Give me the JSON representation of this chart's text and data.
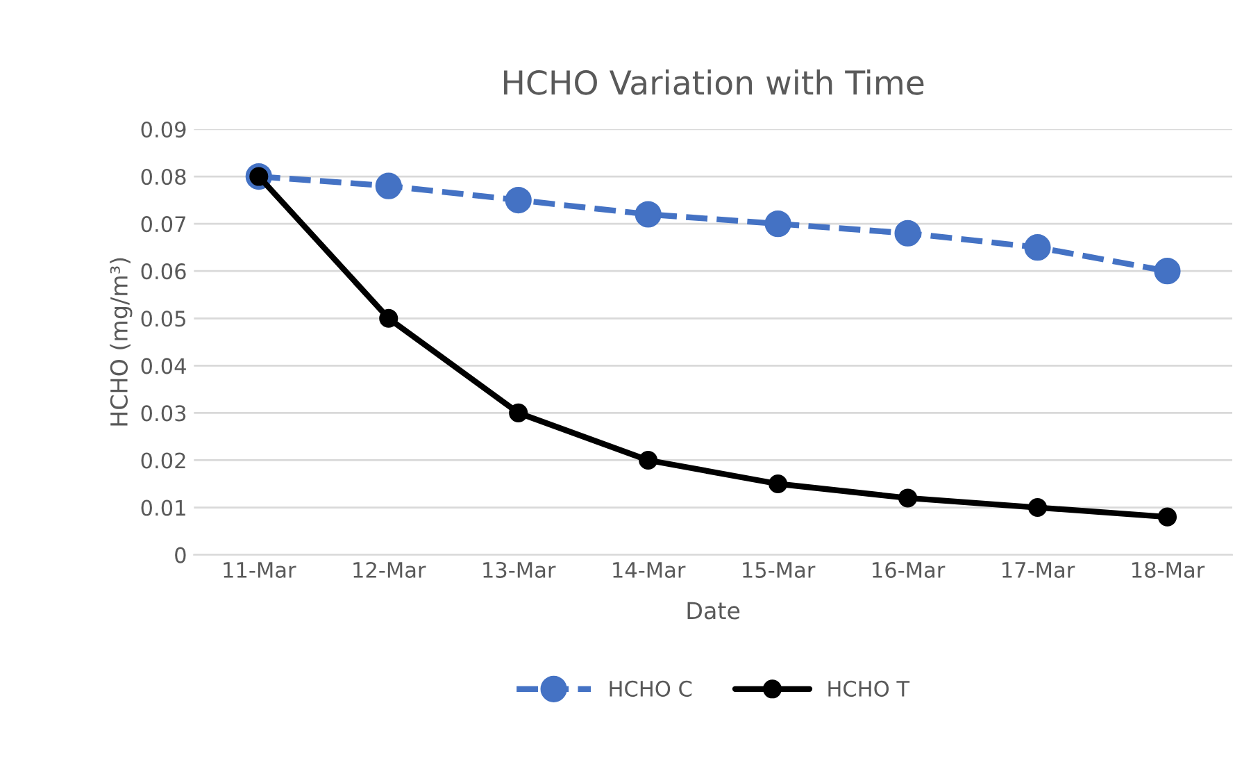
{
  "chart_data": {
    "type": "line",
    "title": "HCHO Variation with Time",
    "xlabel": "Date",
    "ylabel": "HCHO (mg/m³)",
    "categories": [
      "11-Mar",
      "12-Mar",
      "13-Mar",
      "14-Mar",
      "15-Mar",
      "16-Mar",
      "17-Mar",
      "18-Mar"
    ],
    "series": [
      {
        "name": "HCHO C",
        "color": "#4472c4",
        "line_style": "dashed",
        "values": [
          0.08,
          0.078,
          0.075,
          0.072,
          0.07,
          0.068,
          0.065,
          0.06
        ]
      },
      {
        "name": "HCHO T",
        "color": "#000000",
        "line_style": "solid",
        "values": [
          0.08,
          0.05,
          0.03,
          0.02,
          0.015,
          0.012,
          0.01,
          0.008
        ]
      }
    ],
    "ylim": [
      0,
      0.09
    ],
    "yticks": [
      0,
      0.01,
      0.02,
      0.03,
      0.04,
      0.05,
      0.06,
      0.07,
      0.08,
      0.09
    ],
    "grid": "y",
    "legend": "bottom",
    "marker": "circle"
  }
}
